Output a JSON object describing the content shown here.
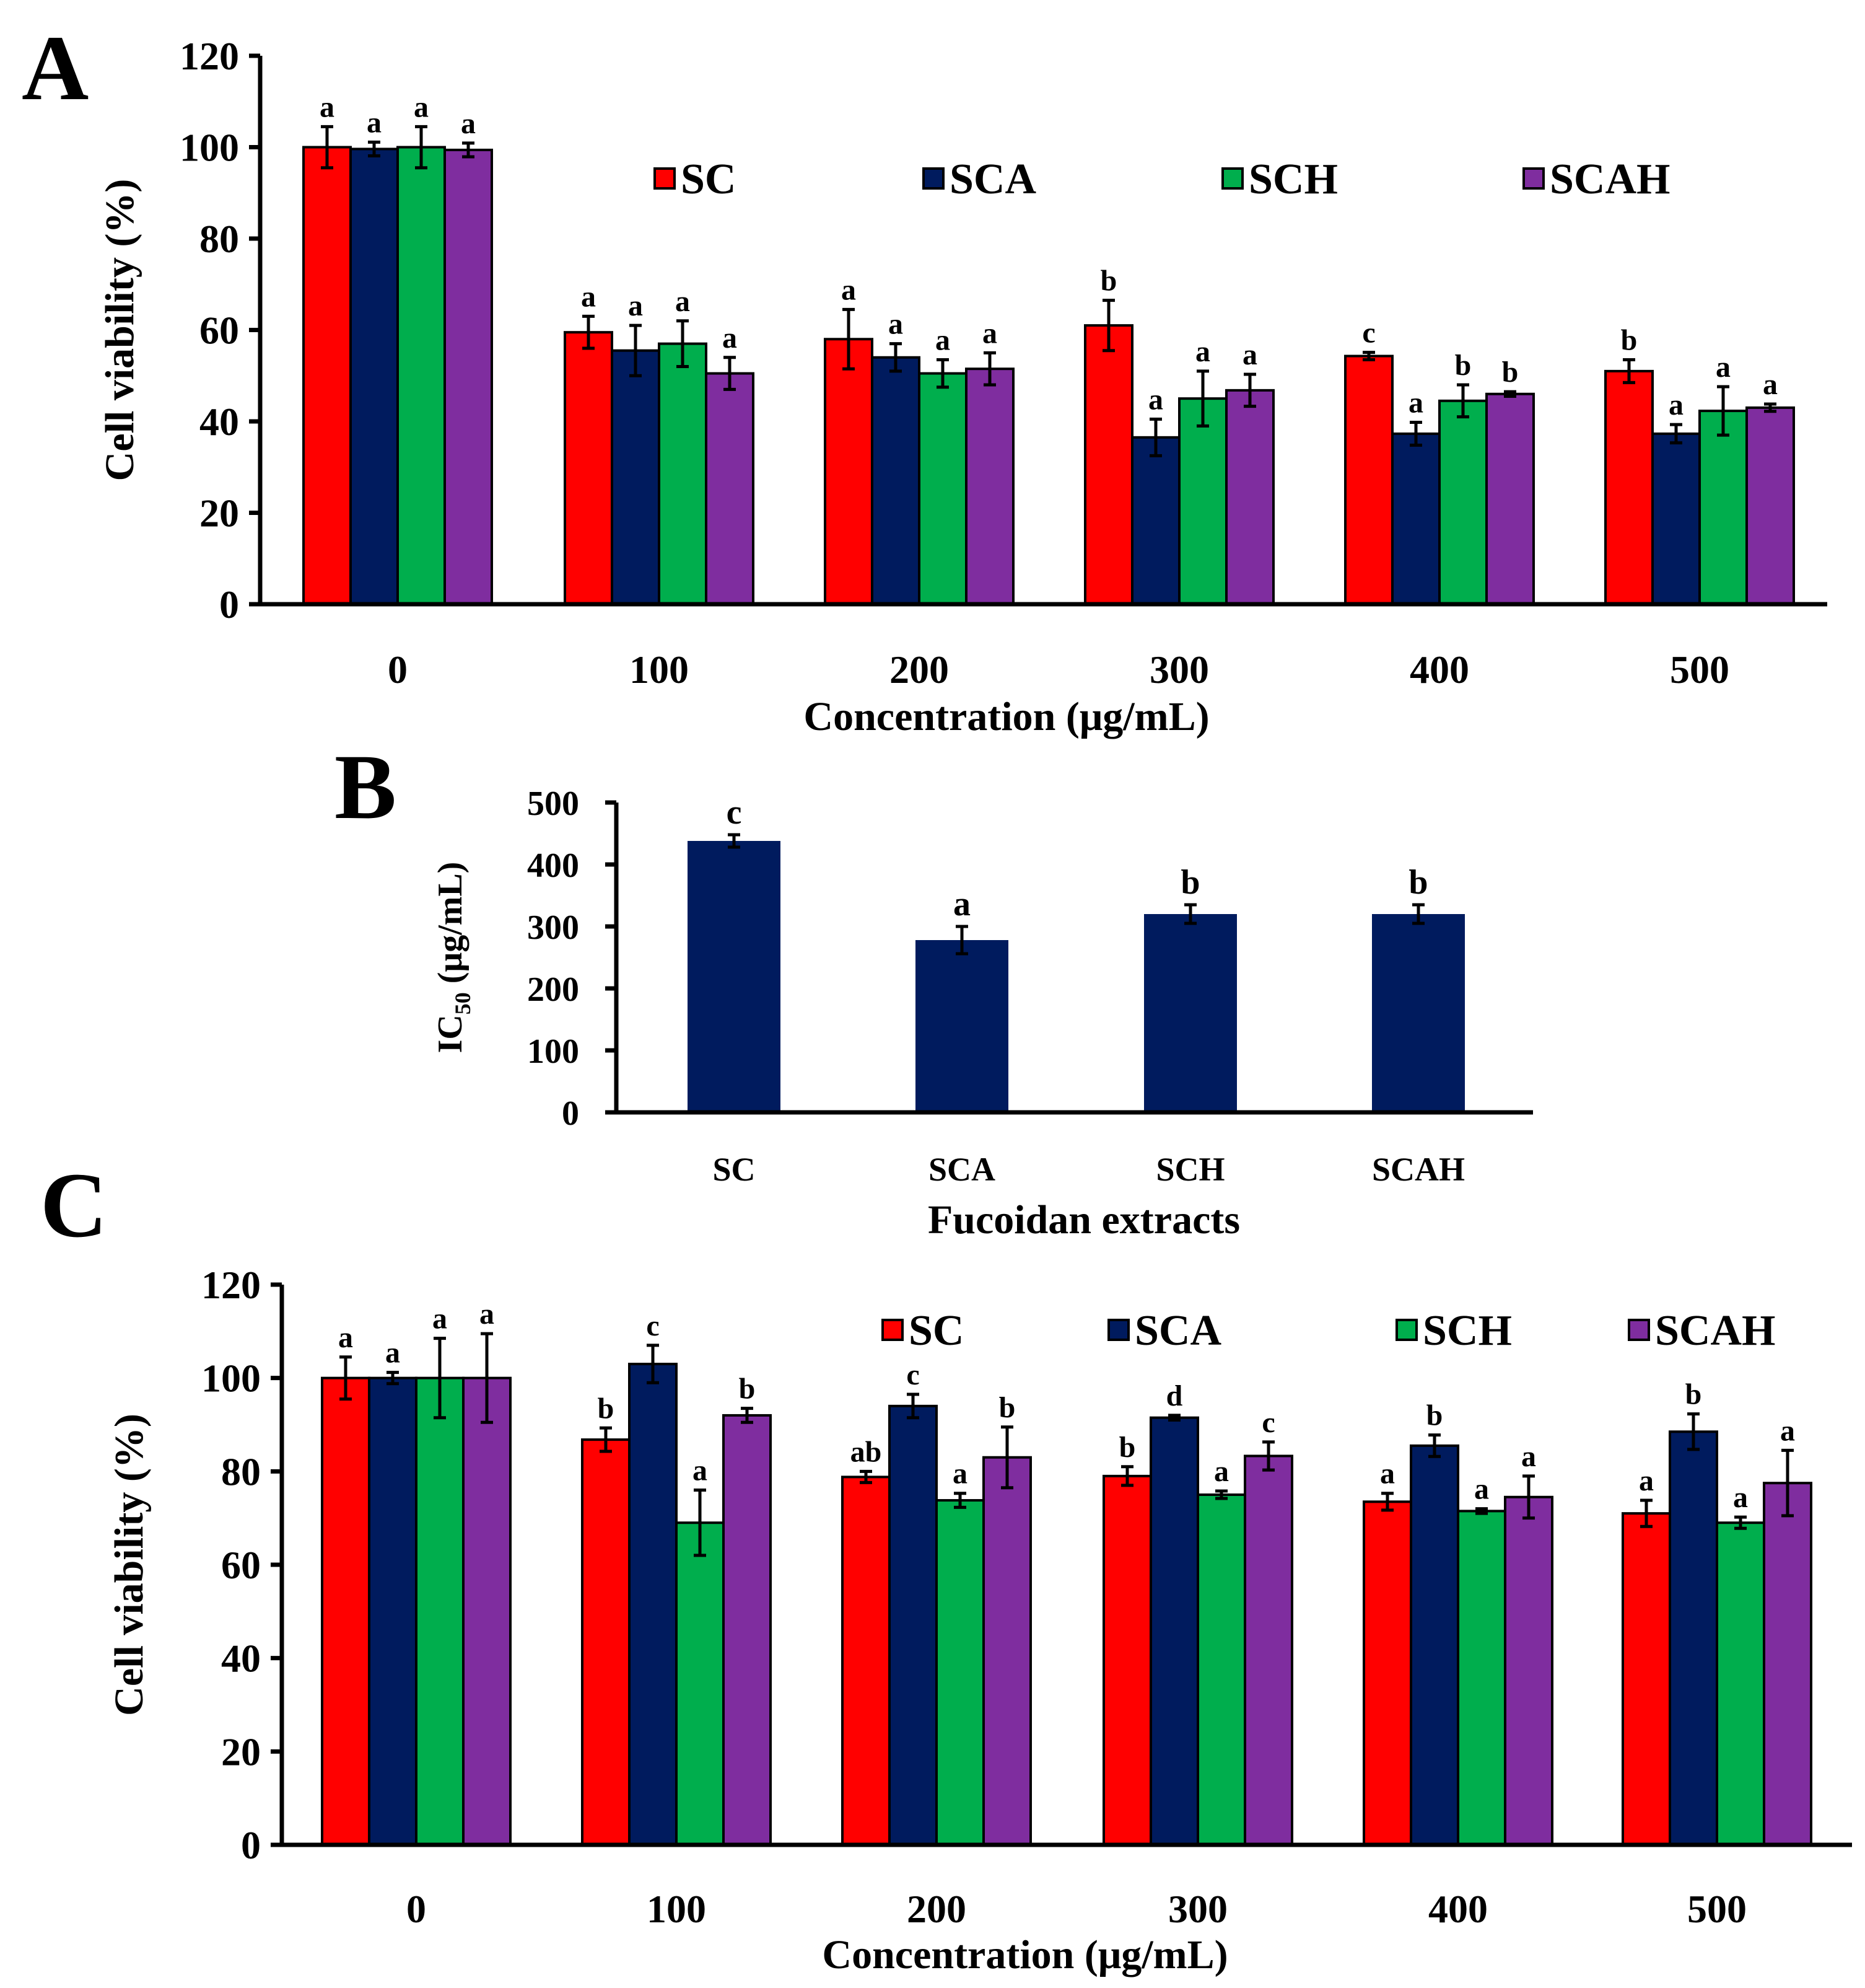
{
  "colors": {
    "SC": "#ff0000",
    "SCA": "#001b5e",
    "SCH": "#00ae4d",
    "SCAH": "#7f2d9f",
    "single": "#001b5e"
  },
  "chart_data": [
    {
      "panel": "A",
      "type": "bar",
      "xlabel": "Concentration (μg/mL)",
      "ylabel": "Cell viability (%)",
      "ylim": [
        0,
        120
      ],
      "yticks": [
        0,
        20,
        40,
        60,
        80,
        100,
        120
      ],
      "legend_position": "top",
      "categories": [
        "0",
        "100",
        "200",
        "300",
        "400",
        "500"
      ],
      "series": [
        {
          "name": "SC",
          "values": [
            100,
            59.5,
            58,
            61,
            54.3,
            51
          ],
          "errors": [
            4.5,
            3.5,
            6.5,
            5.5,
            0.8,
            2.5
          ],
          "labels": [
            "a",
            "a",
            "a",
            "b",
            "c",
            "b"
          ]
        },
        {
          "name": "SCA",
          "values": [
            99.6,
            55.5,
            54,
            36.5,
            37.3,
            37.3
          ],
          "errors": [
            1.5,
            5.5,
            3,
            4,
            2.5,
            2
          ],
          "labels": [
            "a",
            "a",
            "a",
            "a",
            "a",
            "a"
          ]
        },
        {
          "name": "SCH",
          "values": [
            100,
            57,
            50.5,
            45,
            44.5,
            42.3
          ],
          "errors": [
            4.5,
            5,
            3,
            6,
            3.5,
            5.3
          ],
          "labels": [
            "a",
            "a",
            "a",
            "a",
            "b",
            "a"
          ]
        },
        {
          "name": "SCAH",
          "values": [
            99.4,
            50.5,
            51.5,
            46.8,
            46,
            43
          ],
          "errors": [
            1.5,
            3.5,
            3.5,
            3.5,
            0.5,
            0.8
          ],
          "labels": [
            "a",
            "a",
            "a",
            "a",
            "b",
            "a"
          ]
        }
      ]
    },
    {
      "panel": "B",
      "type": "bar",
      "xlabel": "Fucoidan extracts",
      "ylabel_main": "IC",
      "ylabel_sub": "50",
      "ylabel_unit": " (μg/mL)",
      "ylim": [
        0,
        500
      ],
      "yticks": [
        0,
        100,
        200,
        300,
        400,
        500
      ],
      "categories": [
        "SC",
        "SCA",
        "SCH",
        "SCAH"
      ],
      "values": [
        438,
        278,
        320,
        320
      ],
      "errors": [
        10,
        22,
        15,
        15
      ],
      "labels": [
        "c",
        "a",
        "b",
        "b"
      ]
    },
    {
      "panel": "C",
      "type": "bar",
      "xlabel": "Concentration (μg/mL)",
      "ylabel": "Cell viability (%)",
      "ylim": [
        0,
        120
      ],
      "yticks": [
        0,
        20,
        40,
        60,
        80,
        100,
        120
      ],
      "legend_position": "top",
      "categories": [
        "0",
        "100",
        "200",
        "300",
        "400",
        "500"
      ],
      "series": [
        {
          "name": "SC",
          "values": [
            100,
            86.8,
            78.8,
            79,
            73.5,
            71
          ],
          "errors": [
            4.5,
            2.5,
            1.2,
            2,
            1.8,
            2.8
          ],
          "labels": [
            "a",
            "b",
            "ab",
            "b",
            "a",
            "a"
          ]
        },
        {
          "name": "SCA",
          "values": [
            100,
            103,
            94,
            91.5,
            85.5,
            88.5
          ],
          "errors": [
            1.2,
            4,
            2.5,
            0.5,
            2.3,
            3.8
          ],
          "labels": [
            "a",
            "c",
            "c",
            "d",
            "b",
            "b"
          ]
        },
        {
          "name": "SCH",
          "values": [
            100,
            69,
            73.8,
            75,
            71.5,
            69
          ],
          "errors": [
            8.5,
            7,
            1.5,
            0.8,
            0.5,
            1.2
          ],
          "labels": [
            "a",
            "a",
            "a",
            "a",
            "a",
            "a"
          ]
        },
        {
          "name": "SCAH",
          "values": [
            100,
            92,
            83,
            83.3,
            74.5,
            77.5
          ],
          "errors": [
            9.5,
            1.5,
            6.5,
            3,
            4.5,
            7
          ],
          "labels": [
            "a",
            "b",
            "b",
            "c",
            "a",
            "a"
          ]
        }
      ]
    }
  ]
}
